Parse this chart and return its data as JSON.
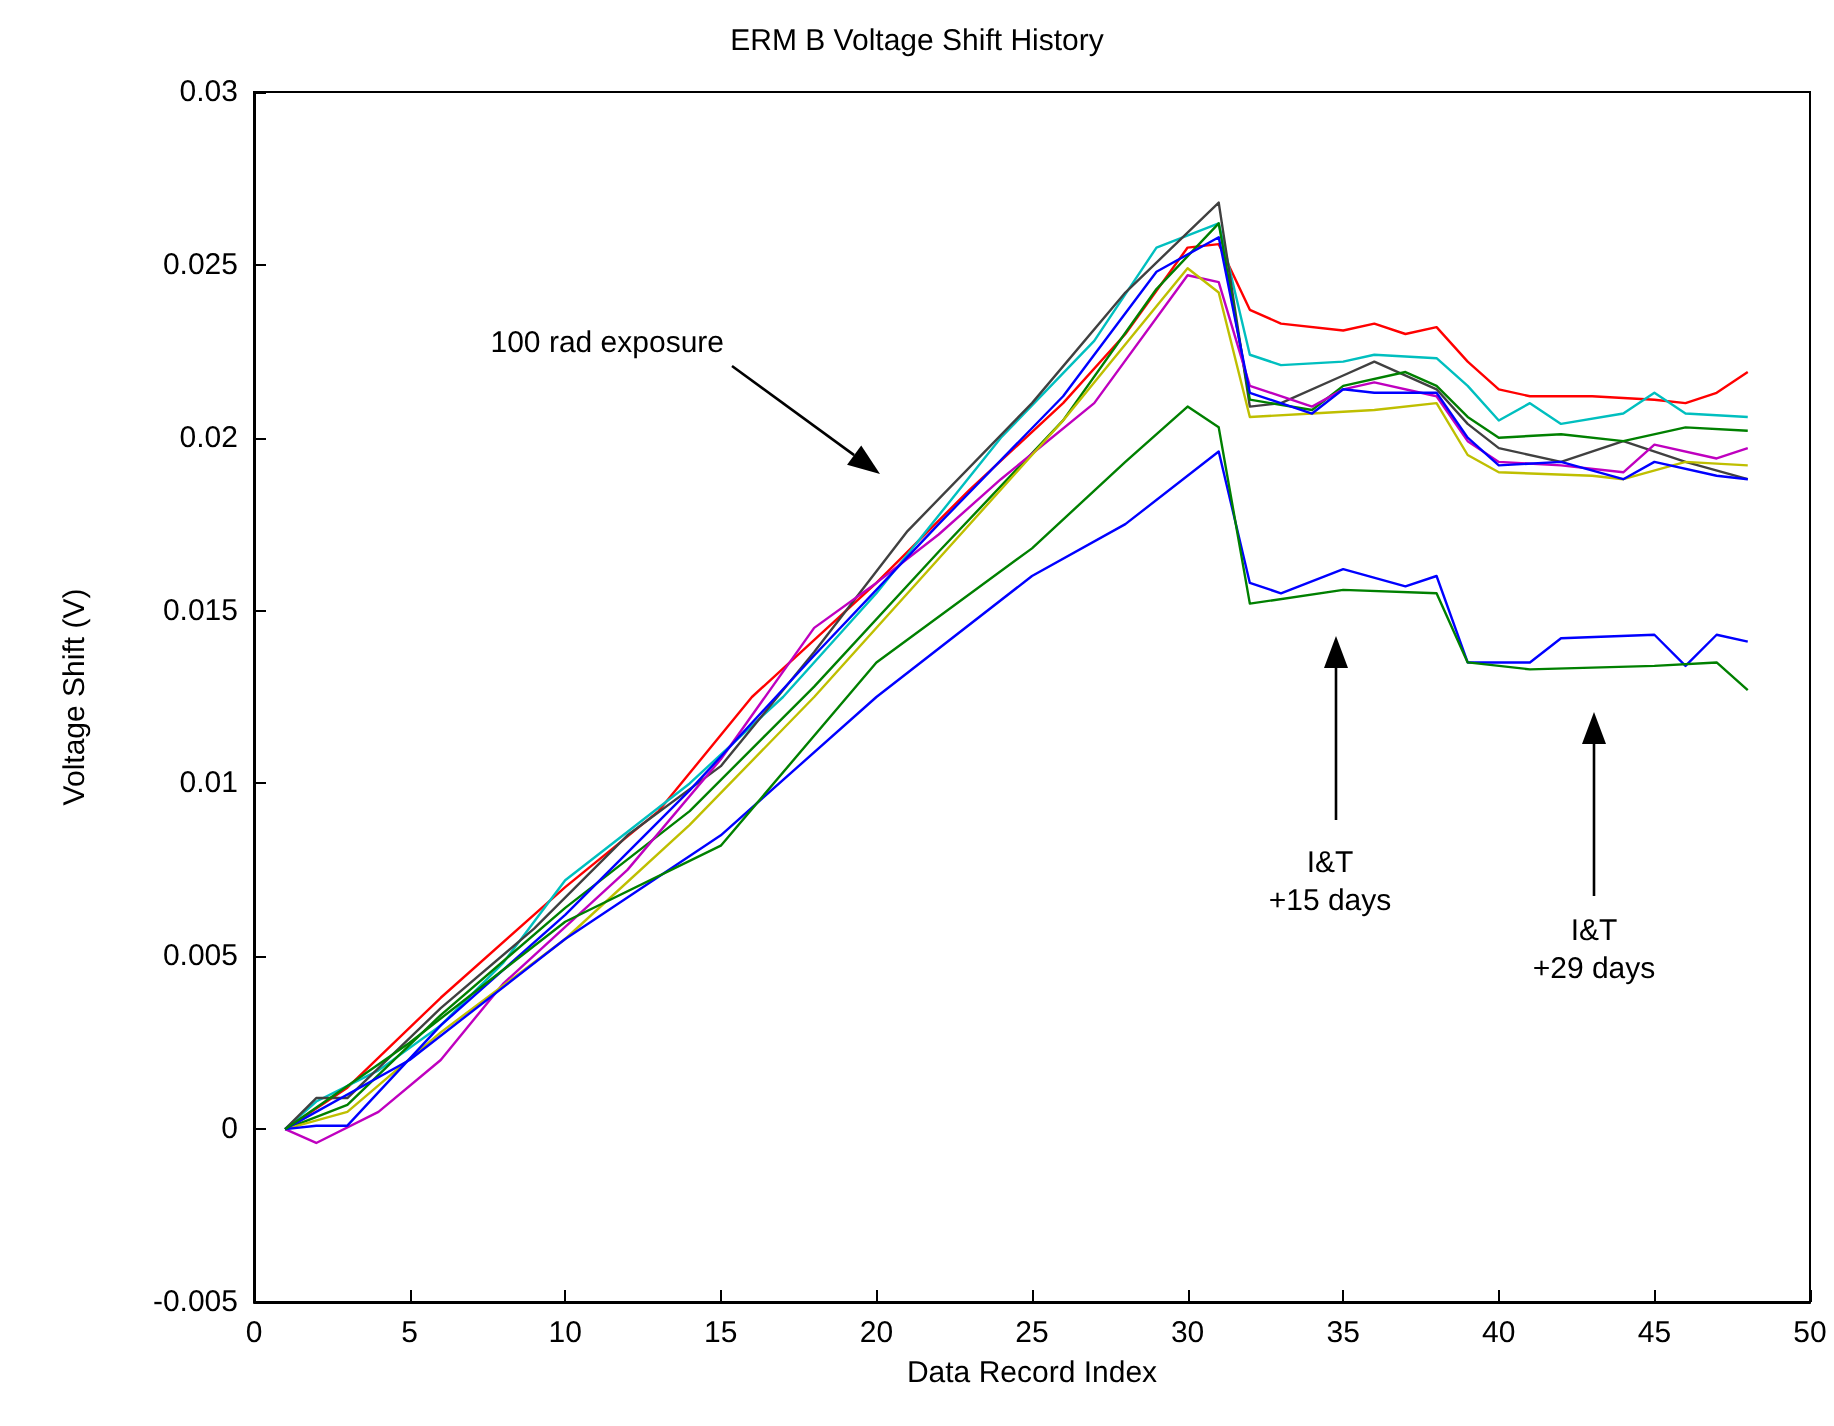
{
  "chart_data": {
    "type": "line",
    "title": "ERM B Voltage Shift History",
    "xlabel": "Data Record Index",
    "ylabel": "Voltage Shift (V)",
    "xlim": [
      0,
      50
    ],
    "xticks": [
      0,
      5,
      10,
      15,
      20,
      25,
      30,
      35,
      40,
      45,
      50
    ],
    "ylim": [
      -0.005,
      0.03
    ],
    "yticks": [
      -0.005,
      0,
      0.005,
      0.01,
      0.015,
      0.02,
      0.025,
      0.03
    ],
    "marker": "none",
    "line_style": "solid",
    "annotations": [
      "100 rad exposure",
      "I&T\n+15 days",
      "I&T\n+29 days"
    ],
    "series": [
      {
        "color": "#ff0000",
        "x": [
          1,
          3,
          6,
          10,
          13,
          16,
          20,
          23,
          26,
          28,
          30,
          31,
          32,
          33,
          35,
          36,
          37,
          38,
          39,
          40,
          41,
          43,
          45,
          46,
          47,
          48
        ],
        "values": [
          0,
          0.0012,
          0.0038,
          0.007,
          0.0092,
          0.0125,
          0.0158,
          0.0185,
          0.021,
          0.023,
          0.0255,
          0.0256,
          0.0237,
          0.0233,
          0.0231,
          0.0233,
          0.023,
          0.0232,
          0.0222,
          0.0214,
          0.0212,
          0.0212,
          0.0211,
          0.021,
          0.0213,
          0.0219
        ]
      },
      {
        "color": "#00bfbf",
        "x": [
          1,
          2,
          4,
          6,
          8,
          10,
          14,
          17,
          20,
          24,
          27,
          29,
          31,
          32,
          33,
          35,
          36,
          38,
          39,
          40,
          41,
          42,
          44,
          45,
          46,
          48
        ],
        "values": [
          0,
          0.0008,
          0.0017,
          0.003,
          0.0048,
          0.0072,
          0.01,
          0.0125,
          0.0155,
          0.02,
          0.0228,
          0.0255,
          0.0262,
          0.0224,
          0.0221,
          0.0222,
          0.0224,
          0.0223,
          0.0215,
          0.0205,
          0.021,
          0.0204,
          0.0207,
          0.0213,
          0.0207,
          0.0206
        ]
      },
      {
        "color": "#404040",
        "x": [
          1,
          2,
          3,
          6,
          9,
          12,
          15,
          18,
          21,
          25,
          28,
          31,
          32,
          33,
          35,
          36,
          38,
          39,
          40,
          42,
          44,
          46,
          48
        ],
        "values": [
          0,
          0.0009,
          0.0009,
          0.0035,
          0.0058,
          0.0085,
          0.0105,
          0.0138,
          0.0173,
          0.021,
          0.0242,
          0.0268,
          0.0209,
          0.021,
          0.0218,
          0.0222,
          0.0214,
          0.0204,
          0.0197,
          0.0193,
          0.0199,
          0.0193,
          0.0188
        ]
      },
      {
        "color": "#008000",
        "x": [
          1,
          3,
          6,
          10,
          14,
          18,
          22,
          26,
          29,
          31,
          32,
          34,
          35,
          37,
          38,
          39,
          40,
          42,
          44,
          46,
          48
        ],
        "values": [
          0,
          0.0007,
          0.0033,
          0.0064,
          0.0092,
          0.0128,
          0.0167,
          0.0205,
          0.0243,
          0.0262,
          0.0211,
          0.0208,
          0.0215,
          0.0219,
          0.0215,
          0.0206,
          0.02,
          0.0201,
          0.0199,
          0.0203,
          0.0202
        ]
      },
      {
        "color": "#bf00bf",
        "x": [
          1,
          2,
          4,
          6,
          8,
          12,
          15,
          18,
          20,
          22,
          24,
          27,
          30,
          31,
          32,
          34,
          35,
          36,
          38,
          39,
          40,
          42,
          44,
          45,
          47,
          48
        ],
        "values": [
          0,
          -0.0004,
          0.0005,
          0.002,
          0.0042,
          0.0075,
          0.0107,
          0.0145,
          0.0158,
          0.0172,
          0.0188,
          0.021,
          0.0247,
          0.0245,
          0.0215,
          0.0209,
          0.0214,
          0.0216,
          0.0212,
          0.0199,
          0.0193,
          0.0192,
          0.019,
          0.0198,
          0.0194,
          0.0197
        ]
      },
      {
        "color": "#bfbf00",
        "x": [
          1,
          3,
          6,
          10,
          14,
          18,
          22,
          26,
          29,
          30,
          31,
          32,
          34,
          36,
          38,
          39,
          40,
          43,
          44,
          46,
          48
        ],
        "values": [
          0,
          0.0005,
          0.0028,
          0.0055,
          0.0088,
          0.0125,
          0.0165,
          0.0205,
          0.0238,
          0.0249,
          0.0242,
          0.0206,
          0.0207,
          0.0208,
          0.021,
          0.0195,
          0.019,
          0.0189,
          0.0188,
          0.0193,
          0.0192
        ]
      },
      {
        "color": "#0000ff",
        "x": [
          1,
          2,
          3,
          6,
          10,
          14,
          18,
          22,
          26,
          29,
          31,
          32,
          34,
          35,
          36,
          38,
          39,
          40,
          42,
          44,
          45,
          47,
          48
        ],
        "values": [
          0,
          0.0001,
          0.0001,
          0.003,
          0.0062,
          0.0098,
          0.0137,
          0.0175,
          0.0212,
          0.0248,
          0.0258,
          0.0213,
          0.0207,
          0.0214,
          0.0213,
          0.0213,
          0.02,
          0.0192,
          0.0193,
          0.0188,
          0.0193,
          0.0189,
          0.0188
        ]
      },
      {
        "color": "#0000ff",
        "x": [
          1,
          5,
          10,
          15,
          20,
          25,
          28,
          31,
          32,
          33,
          35,
          37,
          38,
          39,
          41,
          42,
          45,
          46,
          47,
          48
        ],
        "values": [
          0,
          0.002,
          0.0055,
          0.0085,
          0.0125,
          0.016,
          0.0175,
          0.0196,
          0.0158,
          0.0155,
          0.0162,
          0.0157,
          0.016,
          0.0135,
          0.0135,
          0.0142,
          0.0143,
          0.0134,
          0.0143,
          0.0141
        ]
      },
      {
        "color": "#008000",
        "x": [
          1,
          5,
          10,
          15,
          20,
          25,
          28,
          30,
          31,
          32,
          35,
          38,
          39,
          41,
          45,
          47,
          48
        ],
        "values": [
          0,
          0.0025,
          0.006,
          0.0082,
          0.0135,
          0.0168,
          0.0193,
          0.0209,
          0.0203,
          0.0152,
          0.0156,
          0.0155,
          0.0135,
          0.0133,
          0.0134,
          0.0135,
          0.0127
        ]
      }
    ]
  }
}
